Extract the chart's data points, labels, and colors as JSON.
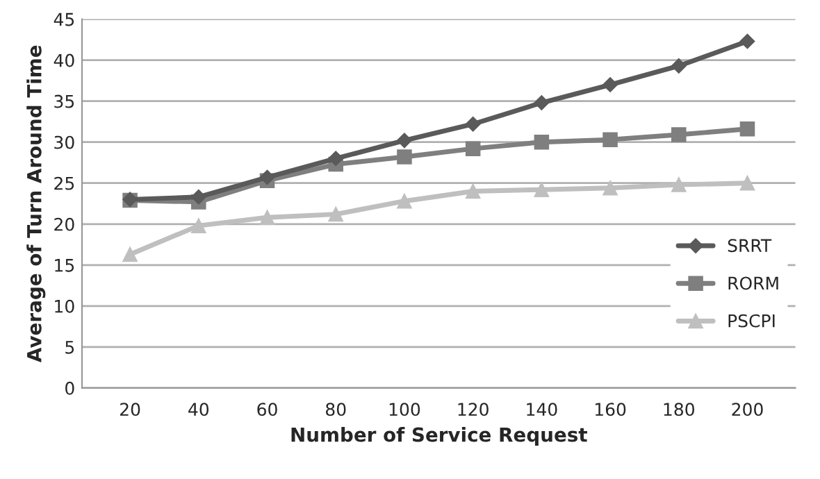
{
  "chart_data": {
    "type": "line",
    "xlabel": "Number of Service Request",
    "ylabel": "Average of Turn Around Time",
    "categories": [
      "20",
      "40",
      "60",
      "80",
      "100",
      "120",
      "140",
      "160",
      "180",
      "200"
    ],
    "series": [
      {
        "name": "SRRT",
        "color": "#5a5a5a",
        "marker": "diamond",
        "values": [
          23,
          23.3,
          25.7,
          28,
          30.2,
          32.2,
          34.8,
          37,
          39.3,
          42.3
        ]
      },
      {
        "name": "RORM",
        "color": "#7f7f7f",
        "marker": "square",
        "values": [
          22.9,
          22.7,
          25.3,
          27.3,
          28.2,
          29.2,
          30,
          30.3,
          30.9,
          31.6
        ]
      },
      {
        "name": "PSCPI",
        "color": "#bfbfbf",
        "marker": "triangle",
        "values": [
          16.3,
          19.8,
          20.8,
          21.2,
          22.8,
          24,
          24.2,
          24.4,
          24.8,
          25
        ]
      }
    ],
    "ylim": [
      0,
      45
    ],
    "yticks": [
      0,
      5,
      10,
      15,
      20,
      25,
      30,
      35,
      40,
      45
    ],
    "grid": "y",
    "legend": "right",
    "line_style": "solid"
  }
}
